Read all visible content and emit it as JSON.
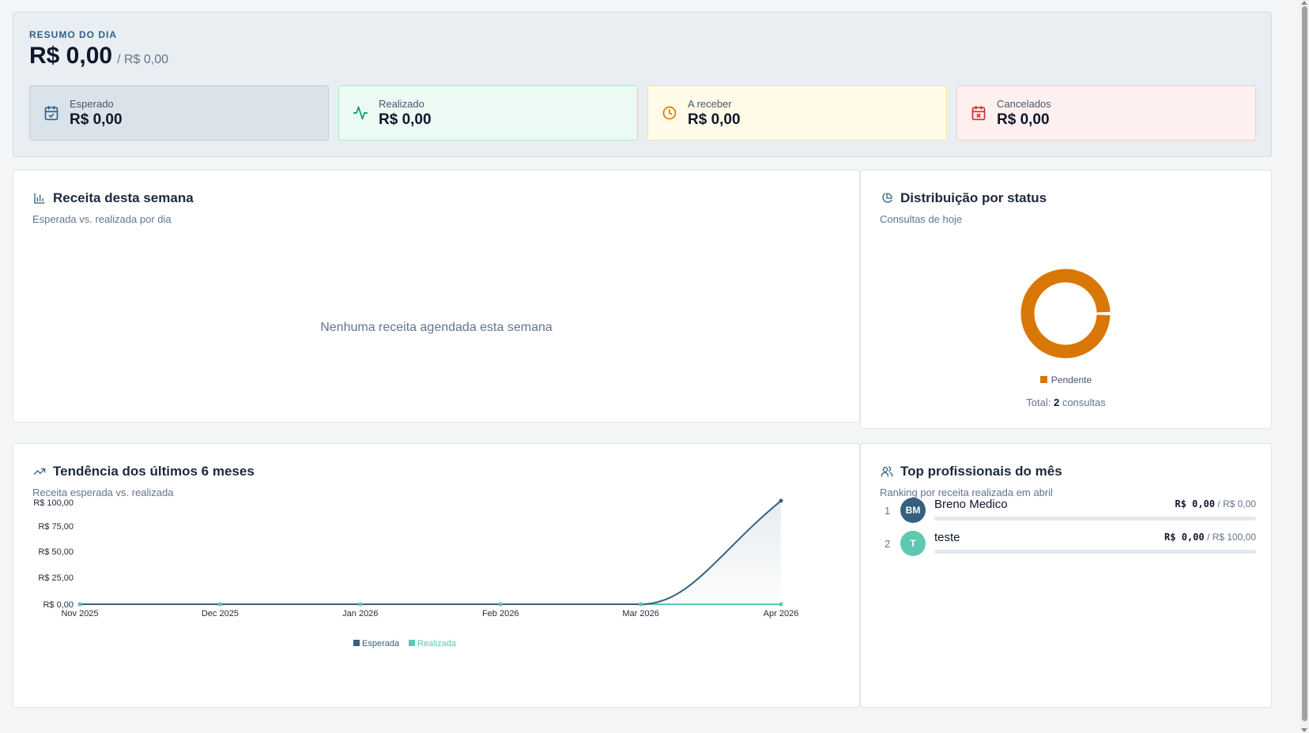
{
  "summary": {
    "eyebrow": "RESUMO DO DIA",
    "total_value": "R$ 0,00",
    "total_expected": "/ R$ 0,00",
    "stats": [
      {
        "label": "Esperado",
        "value": "R$ 0,00",
        "icon": "calendar-check-icon",
        "color": "#2f5f86"
      },
      {
        "label": "Realizado",
        "value": "R$ 0,00",
        "icon": "activity-icon",
        "color": "#059669"
      },
      {
        "label": "A receber",
        "value": "R$ 0,00",
        "icon": "clock-icon",
        "color": "#d97706"
      },
      {
        "label": "Cancelados",
        "value": "R$ 0,00",
        "icon": "calendar-x-icon",
        "color": "#dc2626"
      }
    ]
  },
  "weekly": {
    "title": "Receita desta semana",
    "subtitle": "Esperada vs. realizada por dia",
    "empty": "Nenhuma receita agendada esta semana"
  },
  "status": {
    "title": "Distribuição por status",
    "subtitle": "Consultas de hoje",
    "legend": "Pendente",
    "total_prefix": "Total:",
    "total_count": "2",
    "total_suffix": "consultas"
  },
  "trend": {
    "title": "Tendência dos últimos 6 meses",
    "subtitle": "Receita esperada vs. realizada"
  },
  "top": {
    "title": "Top profissionais do mês",
    "subtitle": "Ranking por receita realizada em abril",
    "items": [
      {
        "rank": "1",
        "initials": "BM",
        "name": "Breno Medico",
        "realized": "R$ 0,00",
        "expected": "/ R$ 0,00",
        "color": "#35607f"
      },
      {
        "rank": "2",
        "initials": "T",
        "name": "teste",
        "realized": "R$ 0,00",
        "expected": "/ R$ 100,00",
        "color": "#5ec8b1"
      }
    ]
  },
  "chart_data": [
    {
      "type": "pie",
      "categories": [
        "Pendente"
      ],
      "values": [
        2
      ],
      "legend": "bottom",
      "colors": [
        "#d97706"
      ]
    },
    {
      "type": "area",
      "categories": [
        "Nov 2025",
        "Dec 2025",
        "Jan 2026",
        "Feb 2026",
        "Mar 2026",
        "Apr 2026"
      ],
      "series": [
        {
          "name": "Esperada",
          "values": [
            0,
            0,
            0,
            0,
            0,
            100
          ],
          "color": "#35607f"
        },
        {
          "name": "Realizada",
          "values": [
            0,
            0,
            0,
            0,
            0,
            0
          ],
          "color": "#5ec8b1"
        }
      ],
      "yticks": [
        "R$ 100,00",
        "R$ 75,00",
        "R$ 50,00",
        "R$ 25,00",
        "R$ 0,00"
      ],
      "ylim": [
        0,
        100
      ],
      "legend": "bottom"
    }
  ]
}
